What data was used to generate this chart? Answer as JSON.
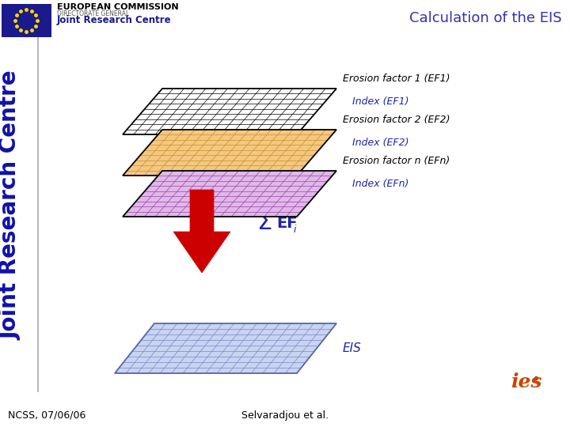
{
  "title": "Calculation of the EIS",
  "title_color": "#3333AA",
  "background_color": "#ffffff",
  "layers": [
    {
      "label1": "Erosion factor 1 (EF1)",
      "label2": "Index (EF1)",
      "fill_color": "#ffffff",
      "grid_color": "#000000",
      "edge_color": "#000000"
    },
    {
      "label1": "Erosion factor 2 (EF2)",
      "label2": "Index (EF2)",
      "fill_color": "#F5C880",
      "grid_color": "#C89030",
      "edge_color": "#000000"
    },
    {
      "label1": "Erosion factor n (EFn)",
      "label2": "Index (EFn)",
      "fill_color": "#E0B8E8",
      "grid_color": "#9944AA",
      "edge_color": "#000000"
    }
  ],
  "eis_layer": {
    "fill_color": "#C8D4F0",
    "grid_color": "#7788CC",
    "edge_color": "#5566AA",
    "label": "EIS"
  },
  "arrow_color": "#CC0000",
  "label_color": "#000000",
  "index_color": "#2222AA",
  "footer_left": "NCSS, 07/06/06",
  "footer_center": "Selvaradjou et al.",
  "sidebar_text": "Joint Research Centre",
  "sidebar_color": "#1111AA",
  "header_rect_color": "#1A1A8C",
  "header_text1": "EUROPEAN COMMISSION",
  "header_text2": "DIRECTORATE GENERAL",
  "header_text3": "Joint Research Centre"
}
